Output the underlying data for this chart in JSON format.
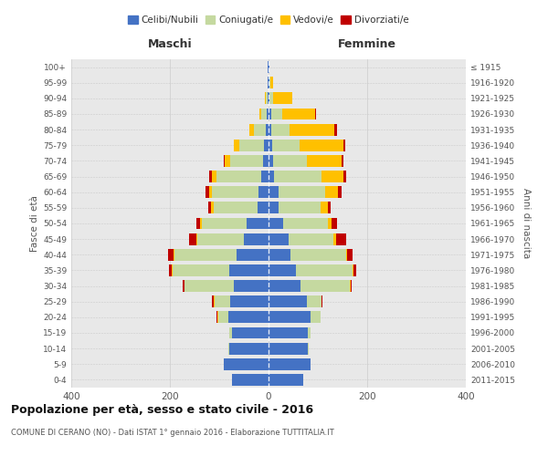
{
  "age_groups": [
    "0-4",
    "5-9",
    "10-14",
    "15-19",
    "20-24",
    "25-29",
    "30-34",
    "35-39",
    "40-44",
    "45-49",
    "50-54",
    "55-59",
    "60-64",
    "65-69",
    "70-74",
    "75-79",
    "80-84",
    "85-89",
    "90-94",
    "95-99",
    "100+"
  ],
  "birth_years": [
    "2011-2015",
    "2006-2010",
    "2001-2005",
    "1996-2000",
    "1991-1995",
    "1986-1990",
    "1981-1985",
    "1976-1980",
    "1971-1975",
    "1966-1970",
    "1961-1965",
    "1956-1960",
    "1951-1955",
    "1946-1950",
    "1941-1945",
    "1936-1940",
    "1931-1935",
    "1926-1930",
    "1921-1925",
    "1916-1920",
    "≤ 1915"
  ],
  "maschi": {
    "celibi": [
      75,
      90,
      80,
      75,
      82,
      78,
      70,
      80,
      65,
      50,
      45,
      22,
      20,
      15,
      12,
      10,
      5,
      4,
      2,
      2,
      2
    ],
    "coniugati": [
      0,
      0,
      2,
      5,
      20,
      32,
      100,
      115,
      125,
      95,
      90,
      90,
      95,
      90,
      65,
      50,
      25,
      10,
      4,
      0,
      0
    ],
    "vedovi": [
      0,
      0,
      0,
      0,
      2,
      2,
      1,
      2,
      2,
      2,
      3,
      5,
      5,
      10,
      12,
      10,
      8,
      5,
      2,
      0,
      0
    ],
    "divorziati": [
      0,
      0,
      0,
      0,
      2,
      2,
      3,
      5,
      12,
      15,
      8,
      5,
      8,
      5,
      2,
      0,
      0,
      0,
      0,
      0,
      0
    ]
  },
  "femmine": {
    "nubili": [
      70,
      85,
      80,
      80,
      85,
      78,
      65,
      55,
      45,
      40,
      30,
      20,
      20,
      12,
      10,
      8,
      5,
      5,
      2,
      2,
      2
    ],
    "coniugate": [
      0,
      0,
      2,
      5,
      20,
      30,
      100,
      115,
      112,
      92,
      90,
      85,
      95,
      95,
      68,
      55,
      38,
      22,
      8,
      2,
      0
    ],
    "vedove": [
      0,
      0,
      0,
      0,
      0,
      0,
      1,
      2,
      3,
      5,
      8,
      15,
      25,
      45,
      70,
      88,
      90,
      68,
      38,
      5,
      0
    ],
    "divorziate": [
      0,
      0,
      0,
      0,
      0,
      2,
      3,
      5,
      10,
      20,
      10,
      5,
      8,
      5,
      3,
      5,
      5,
      2,
      0,
      0,
      0
    ]
  },
  "colors": {
    "celibi": "#4472c4",
    "coniugati": "#c5d9a0",
    "vedovi": "#ffc000",
    "divorziati": "#c00000"
  },
  "xlim": 400,
  "title": "Popolazione per età, sesso e stato civile - 2016",
  "subtitle": "COMUNE DI CERANO (NO) - Dati ISTAT 1° gennaio 2016 - Elaborazione TUTTITALIA.IT",
  "ylabel_left": "Fasce di età",
  "ylabel_right": "Anni di nascita",
  "xlabel_left": "Maschi",
  "xlabel_right": "Femmine",
  "bg_color": "#ffffff",
  "plot_bg": "#e8e8e8",
  "grid_color": "#cccccc",
  "bar_height": 0.75
}
